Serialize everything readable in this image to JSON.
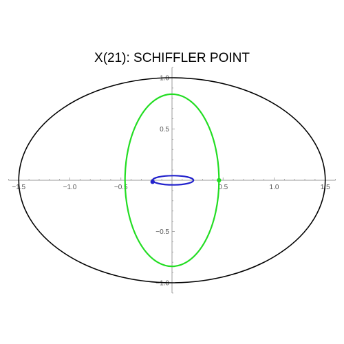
{
  "chart_data": {
    "type": "line",
    "title": "X(21): SCHIFFLER POINT",
    "xlim": [
      -1.6,
      1.6
    ],
    "ylim": [
      -1.1,
      1.1
    ],
    "grid": false,
    "x_ticks": [
      {
        "value": -1.5,
        "label": "−1.5"
      },
      {
        "value": -1.0,
        "label": "−1.0"
      },
      {
        "value": -0.5,
        "label": "−0.5"
      },
      {
        "value": 0.5,
        "label": "0.5"
      },
      {
        "value": 1.0,
        "label": "1.0"
      },
      {
        "value": 1.5,
        "label": "1.5"
      }
    ],
    "y_ticks": [
      {
        "value": 1.0,
        "label": "1.0"
      },
      {
        "value": 0.5,
        "label": "0.5"
      },
      {
        "value": -0.5,
        "label": "−0.5"
      },
      {
        "value": -1.0,
        "label": "−1.0"
      }
    ],
    "series": [
      {
        "shape": "ellipse",
        "color": "#000000",
        "center": [
          0,
          0
        ],
        "rx": 1.5,
        "ry": 1.0
      },
      {
        "shape": "ellipse",
        "color": "#22dd22",
        "center": [
          0,
          0
        ],
        "rx": 0.46,
        "ry": 0.84
      },
      {
        "shape": "ellipse",
        "color": "#2222cc",
        "center": [
          0.01,
          0.0
        ],
        "rx": 0.2,
        "ry": 0.045
      }
    ],
    "points": [
      {
        "x": 0.46,
        "y": 0.0,
        "color": "#22dd22"
      },
      {
        "x": -0.19,
        "y": -0.015,
        "color": "#2222cc"
      }
    ]
  }
}
